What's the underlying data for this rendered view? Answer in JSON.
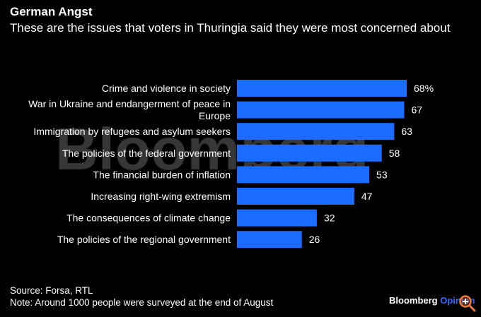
{
  "chart_data": {
    "type": "bar",
    "orientation": "horizontal",
    "title": "German Angst",
    "subtitle": "These are the issues that voters in Thuringia said they were most concerned about",
    "categories": [
      [
        "Crime and violence in society"
      ],
      [
        "War in Ukraine and endangerment of peace in",
        "Europe"
      ],
      [
        "Immigration by refugees and asylum seekers"
      ],
      [
        "The policies of the federal government"
      ],
      [
        "The financial burden of inflation"
      ],
      [
        "Increasing right-wing extremism"
      ],
      [
        "The consequences of climate change"
      ],
      [
        "The policies of the regional government"
      ]
    ],
    "values": [
      68,
      67,
      63,
      58,
      53,
      47,
      32,
      26
    ],
    "value_labels": [
      "68%",
      "67",
      "63",
      "58",
      "53",
      "47",
      "32",
      "26"
    ],
    "xlim": [
      0,
      68
    ],
    "bar_color": "#1a6bff",
    "grid": false
  },
  "footer": {
    "source": "Source: Forsa, RTL",
    "note": "Note: Around 1000 people were surveyed at the end of August",
    "brand": "Bloomberg",
    "brand_suffix": "Opinion"
  },
  "watermark": "Bloomberg",
  "icons": {
    "zoom": "zoom-in-icon"
  }
}
